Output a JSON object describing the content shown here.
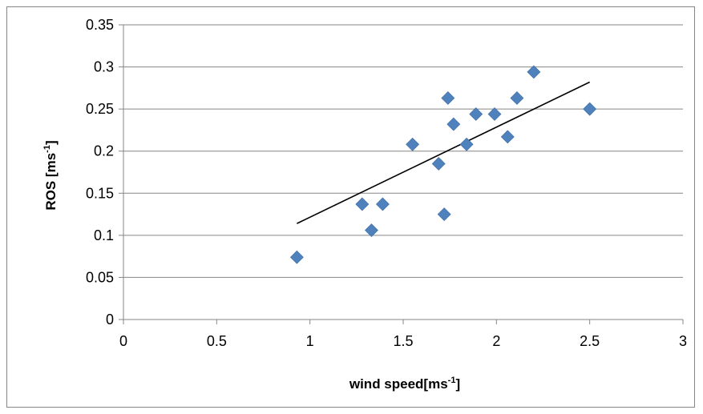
{
  "chart_data": {
    "type": "scatter",
    "title": "",
    "xlabel": "wind speed[ms",
    "xlabel_sup": "-1",
    "xlabel_close": "]",
    "ylabel": "ROS [ms",
    "ylabel_sup": "-1",
    "ylabel_close": "]",
    "xlim": [
      0,
      3
    ],
    "ylim": [
      0,
      0.35
    ],
    "x_ticks": [
      0,
      0.5,
      1,
      1.5,
      2,
      2.5,
      3
    ],
    "x_tick_labels": [
      "0",
      "0.5",
      "1",
      "1.5",
      "2",
      "2.5",
      "3"
    ],
    "y_ticks": [
      0,
      0.05,
      0.1,
      0.15,
      0.2,
      0.25,
      0.3,
      0.35
    ],
    "y_tick_labels": [
      "0",
      "0.05",
      "0.1",
      "0.15",
      "0.2",
      "0.25",
      "0.3",
      "0.35"
    ],
    "grid": "horizontal",
    "legend": "none",
    "marker": "diamond",
    "marker_color": "#4F81BD",
    "trendline_color": "#000000",
    "series": [
      {
        "points": [
          {
            "x": 0.93,
            "y": 0.074
          },
          {
            "x": 1.28,
            "y": 0.137
          },
          {
            "x": 1.33,
            "y": 0.106
          },
          {
            "x": 1.39,
            "y": 0.137
          },
          {
            "x": 1.55,
            "y": 0.208
          },
          {
            "x": 1.69,
            "y": 0.185
          },
          {
            "x": 1.72,
            "y": 0.125
          },
          {
            "x": 1.74,
            "y": 0.263
          },
          {
            "x": 1.77,
            "y": 0.232
          },
          {
            "x": 1.84,
            "y": 0.208
          },
          {
            "x": 1.89,
            "y": 0.244
          },
          {
            "x": 1.99,
            "y": 0.244
          },
          {
            "x": 2.06,
            "y": 0.217
          },
          {
            "x": 2.11,
            "y": 0.263
          },
          {
            "x": 2.2,
            "y": 0.294
          },
          {
            "x": 2.5,
            "y": 0.25
          }
        ]
      }
    ],
    "trendline": {
      "type": "linear",
      "x": [
        0.93,
        2.5
      ],
      "y": [
        0.114,
        0.282
      ]
    }
  }
}
